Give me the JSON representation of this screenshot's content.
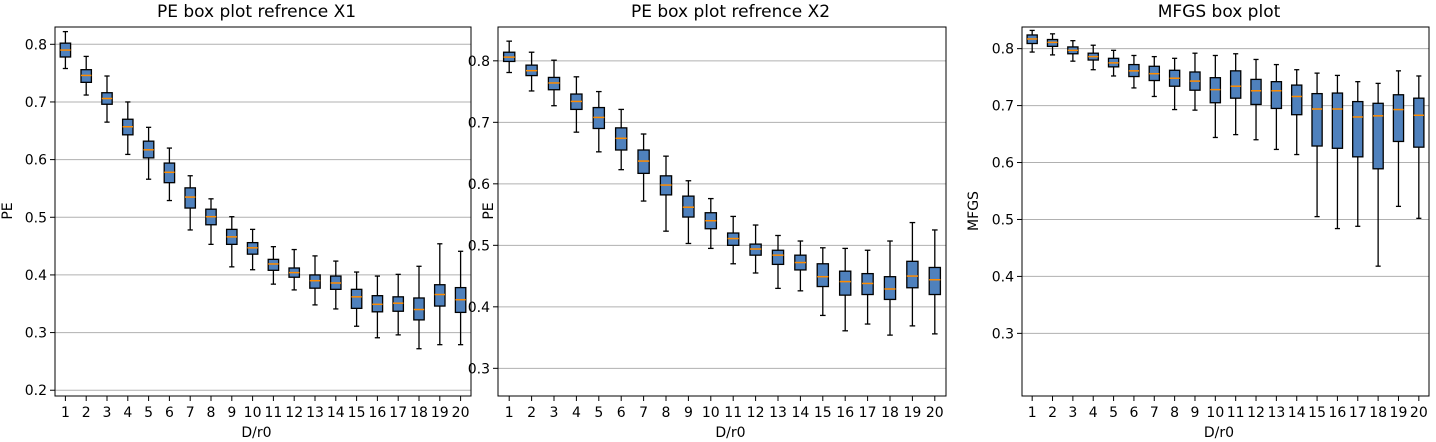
{
  "colors": {
    "box_fill": "#4f81bd",
    "box_edge": "#000000",
    "median": "#ff8c00",
    "grid": "#b0b0b0"
  },
  "chart_data": [
    {
      "type": "box",
      "title": "PE box plot refrence X1",
      "xlabel": "D/r0",
      "ylabel": "PE",
      "ylim": [
        0.19,
        0.83
      ],
      "yticks": [
        0.2,
        0.3,
        0.4,
        0.5,
        0.6,
        0.7,
        0.8
      ],
      "ytick_labels": [
        "0.2",
        "0.3",
        "0.4",
        "0.5",
        "0.6",
        "0.7",
        "0.8"
      ],
      "grid": "horizontal",
      "categories": [
        "1",
        "2",
        "3",
        "4",
        "5",
        "6",
        "7",
        "8",
        "9",
        "10",
        "11",
        "12",
        "13",
        "14",
        "15",
        "16",
        "17",
        "18",
        "19",
        "20"
      ],
      "boxes": [
        {
          "whislo": 0.758,
          "q1": 0.778,
          "med": 0.79,
          "q3": 0.802,
          "whishi": 0.822
        },
        {
          "whislo": 0.712,
          "q1": 0.734,
          "med": 0.746,
          "q3": 0.756,
          "whishi": 0.779
        },
        {
          "whislo": 0.665,
          "q1": 0.696,
          "med": 0.706,
          "q3": 0.716,
          "whishi": 0.745
        },
        {
          "whislo": 0.609,
          "q1": 0.643,
          "med": 0.657,
          "q3": 0.67,
          "whishi": 0.7
        },
        {
          "whislo": 0.566,
          "q1": 0.603,
          "med": 0.617,
          "q3": 0.632,
          "whishi": 0.656
        },
        {
          "whislo": 0.529,
          "q1": 0.56,
          "med": 0.578,
          "q3": 0.594,
          "whishi": 0.62
        },
        {
          "whislo": 0.478,
          "q1": 0.516,
          "med": 0.535,
          "q3": 0.551,
          "whishi": 0.572
        },
        {
          "whislo": 0.453,
          "q1": 0.487,
          "med": 0.501,
          "q3": 0.514,
          "whishi": 0.532
        },
        {
          "whislo": 0.414,
          "q1": 0.453,
          "med": 0.466,
          "q3": 0.479,
          "whishi": 0.501
        },
        {
          "whislo": 0.409,
          "q1": 0.436,
          "med": 0.447,
          "q3": 0.456,
          "whishi": 0.479
        },
        {
          "whislo": 0.384,
          "q1": 0.408,
          "med": 0.419,
          "q3": 0.427,
          "whishi": 0.449
        },
        {
          "whislo": 0.374,
          "q1": 0.396,
          "med": 0.404,
          "q3": 0.412,
          "whishi": 0.444
        },
        {
          "whislo": 0.348,
          "q1": 0.377,
          "med": 0.39,
          "q3": 0.4,
          "whishi": 0.433
        },
        {
          "whislo": 0.341,
          "q1": 0.375,
          "med": 0.386,
          "q3": 0.398,
          "whishi": 0.424
        },
        {
          "whislo": 0.311,
          "q1": 0.342,
          "med": 0.362,
          "q3": 0.375,
          "whishi": 0.405
        },
        {
          "whislo": 0.291,
          "q1": 0.336,
          "med": 0.349,
          "q3": 0.364,
          "whishi": 0.398
        },
        {
          "whislo": 0.296,
          "q1": 0.337,
          "med": 0.351,
          "q3": 0.362,
          "whishi": 0.401
        },
        {
          "whislo": 0.272,
          "q1": 0.322,
          "med": 0.34,
          "q3": 0.36,
          "whishi": 0.415
        },
        {
          "whislo": 0.279,
          "q1": 0.346,
          "med": 0.366,
          "q3": 0.383,
          "whishi": 0.454
        },
        {
          "whislo": 0.279,
          "q1": 0.335,
          "med": 0.357,
          "q3": 0.378,
          "whishi": 0.441
        }
      ]
    },
    {
      "type": "box",
      "title": "PE box plot refrence X2",
      "xlabel": "D/r0",
      "ylabel": "PE",
      "ylim": [
        0.255,
        0.855
      ],
      "yticks": [
        0.3,
        0.4,
        0.5,
        0.6,
        0.7,
        0.8
      ],
      "ytick_labels": [
        "0.3",
        "0.4",
        "0.5",
        "0.6",
        "0.7",
        "0.8"
      ],
      "grid": "horizontal",
      "categories": [
        "1",
        "2",
        "3",
        "4",
        "5",
        "6",
        "7",
        "8",
        "9",
        "10",
        "11",
        "12",
        "13",
        "14",
        "15",
        "16",
        "17",
        "18",
        "19",
        "20"
      ],
      "boxes": [
        {
          "whislo": 0.781,
          "q1": 0.799,
          "med": 0.806,
          "q3": 0.814,
          "whishi": 0.832
        },
        {
          "whislo": 0.751,
          "q1": 0.776,
          "med": 0.784,
          "q3": 0.793,
          "whishi": 0.814
        },
        {
          "whislo": 0.727,
          "q1": 0.753,
          "med": 0.764,
          "q3": 0.773,
          "whishi": 0.801
        },
        {
          "whislo": 0.684,
          "q1": 0.721,
          "med": 0.734,
          "q3": 0.746,
          "whishi": 0.774
        },
        {
          "whislo": 0.652,
          "q1": 0.69,
          "med": 0.708,
          "q3": 0.724,
          "whishi": 0.75
        },
        {
          "whislo": 0.623,
          "q1": 0.655,
          "med": 0.674,
          "q3": 0.691,
          "whishi": 0.721
        },
        {
          "whislo": 0.572,
          "q1": 0.617,
          "med": 0.637,
          "q3": 0.655,
          "whishi": 0.681
        },
        {
          "whislo": 0.523,
          "q1": 0.582,
          "med": 0.598,
          "q3": 0.613,
          "whishi": 0.645
        },
        {
          "whislo": 0.503,
          "q1": 0.546,
          "med": 0.562,
          "q3": 0.58,
          "whishi": 0.605
        },
        {
          "whislo": 0.495,
          "q1": 0.527,
          "med": 0.54,
          "q3": 0.553,
          "whishi": 0.576
        },
        {
          "whislo": 0.47,
          "q1": 0.5,
          "med": 0.511,
          "q3": 0.52,
          "whishi": 0.547
        },
        {
          "whislo": 0.455,
          "q1": 0.484,
          "med": 0.494,
          "q3": 0.502,
          "whishi": 0.533
        },
        {
          "whislo": 0.43,
          "q1": 0.469,
          "med": 0.484,
          "q3": 0.492,
          "whishi": 0.516
        },
        {
          "whislo": 0.426,
          "q1": 0.46,
          "med": 0.472,
          "q3": 0.484,
          "whishi": 0.507
        },
        {
          "whislo": 0.386,
          "q1": 0.433,
          "med": 0.449,
          "q3": 0.47,
          "whishi": 0.496
        },
        {
          "whislo": 0.361,
          "q1": 0.419,
          "med": 0.441,
          "q3": 0.458,
          "whishi": 0.495
        },
        {
          "whislo": 0.372,
          "q1": 0.42,
          "med": 0.438,
          "q3": 0.454,
          "whishi": 0.492
        },
        {
          "whislo": 0.354,
          "q1": 0.412,
          "med": 0.429,
          "q3": 0.449,
          "whishi": 0.507
        },
        {
          "whislo": 0.369,
          "q1": 0.431,
          "med": 0.45,
          "q3": 0.474,
          "whishi": 0.537
        },
        {
          "whislo": 0.356,
          "q1": 0.42,
          "med": 0.444,
          "q3": 0.464,
          "whishi": 0.525
        }
      ]
    },
    {
      "type": "box",
      "title": "MFGS box plot",
      "xlabel": "D/r0",
      "ylabel": "MFGS",
      "ylim": [
        0.19,
        0.838
      ],
      "yticks": [
        0.3,
        0.4,
        0.5,
        0.6,
        0.7,
        0.8
      ],
      "ytick_labels": [
        "0.3",
        "0.4",
        "0.5",
        "0.6",
        "0.7",
        "0.8"
      ],
      "grid": "horizontal",
      "categories": [
        "1",
        "2",
        "3",
        "4",
        "5",
        "6",
        "7",
        "8",
        "9",
        "10",
        "11",
        "12",
        "13",
        "14",
        "15",
        "16",
        "17",
        "18",
        "19",
        "20"
      ],
      "boxes": [
        {
          "whislo": 0.794,
          "q1": 0.809,
          "med": 0.817,
          "q3": 0.824,
          "whishi": 0.832
        },
        {
          "whislo": 0.789,
          "q1": 0.804,
          "med": 0.811,
          "q3": 0.816,
          "whishi": 0.826
        },
        {
          "whislo": 0.778,
          "q1": 0.791,
          "med": 0.797,
          "q3": 0.803,
          "whishi": 0.814
        },
        {
          "whislo": 0.763,
          "q1": 0.78,
          "med": 0.786,
          "q3": 0.792,
          "whishi": 0.806
        },
        {
          "whislo": 0.752,
          "q1": 0.768,
          "med": 0.775,
          "q3": 0.783,
          "whishi": 0.797
        },
        {
          "whislo": 0.731,
          "q1": 0.751,
          "med": 0.761,
          "q3": 0.772,
          "whishi": 0.788
        },
        {
          "whislo": 0.716,
          "q1": 0.744,
          "med": 0.756,
          "q3": 0.769,
          "whishi": 0.786
        },
        {
          "whislo": 0.693,
          "q1": 0.734,
          "med": 0.748,
          "q3": 0.762,
          "whishi": 0.783
        },
        {
          "whislo": 0.692,
          "q1": 0.727,
          "med": 0.743,
          "q3": 0.759,
          "whishi": 0.792
        },
        {
          "whislo": 0.644,
          "q1": 0.705,
          "med": 0.728,
          "q3": 0.749,
          "whishi": 0.788
        },
        {
          "whislo": 0.649,
          "q1": 0.713,
          "med": 0.734,
          "q3": 0.761,
          "whishi": 0.791
        },
        {
          "whislo": 0.64,
          "q1": 0.702,
          "med": 0.726,
          "q3": 0.746,
          "whishi": 0.781
        },
        {
          "whislo": 0.623,
          "q1": 0.695,
          "med": 0.726,
          "q3": 0.742,
          "whishi": 0.772
        },
        {
          "whislo": 0.614,
          "q1": 0.684,
          "med": 0.716,
          "q3": 0.736,
          "whishi": 0.763
        },
        {
          "whislo": 0.505,
          "q1": 0.629,
          "med": 0.694,
          "q3": 0.721,
          "whishi": 0.757
        },
        {
          "whislo": 0.484,
          "q1": 0.625,
          "med": 0.694,
          "q3": 0.722,
          "whishi": 0.753
        },
        {
          "whislo": 0.488,
          "q1": 0.61,
          "med": 0.68,
          "q3": 0.707,
          "whishi": 0.742
        },
        {
          "whislo": 0.418,
          "q1": 0.589,
          "med": 0.682,
          "q3": 0.704,
          "whishi": 0.739
        },
        {
          "whislo": 0.523,
          "q1": 0.637,
          "med": 0.693,
          "q3": 0.719,
          "whishi": 0.761
        },
        {
          "whislo": 0.502,
          "q1": 0.627,
          "med": 0.683,
          "q3": 0.713,
          "whishi": 0.752
        }
      ]
    }
  ]
}
